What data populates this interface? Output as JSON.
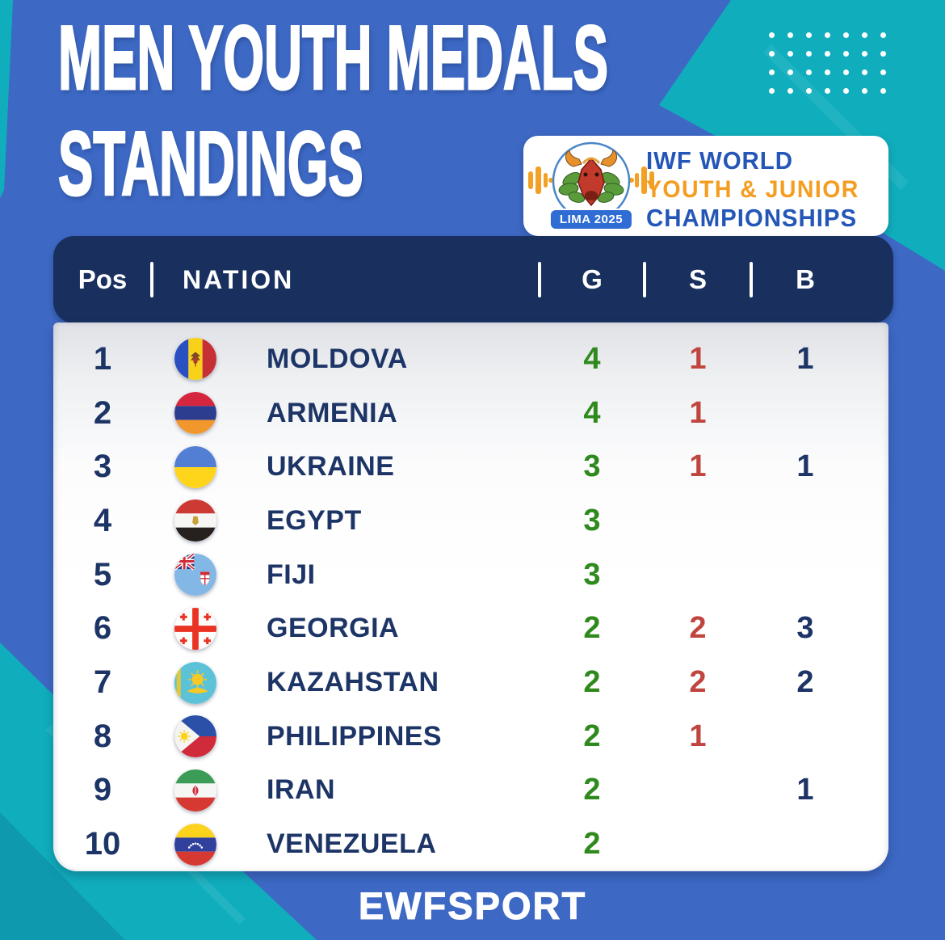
{
  "poster": {
    "title_line1": "MEN YOUTH MEDALS",
    "title_line2": "STANDINGS",
    "footer": "EWFSPORT"
  },
  "logo_card": {
    "event_line1": "IWF WORLD",
    "event_line2": "YOUTH & JUNIOR",
    "event_line3": "CHAMPIONSHIPS",
    "badge": "LIMA 2025",
    "emblem_icon": "dragon-barbell-emblem"
  },
  "medal_table": {
    "headers": {
      "pos": "Pos",
      "nation": "NATION",
      "gold": "G",
      "silver": "S",
      "bronze": "B"
    },
    "rows": [
      {
        "pos": "1",
        "flag": "moldova",
        "nation": "MOLDOVA",
        "gold": "4",
        "silver": "1",
        "bronze": "1"
      },
      {
        "pos": "2",
        "flag": "armenia",
        "nation": "ARMENIA",
        "gold": "4",
        "silver": "1",
        "bronze": ""
      },
      {
        "pos": "3",
        "flag": "ukraine",
        "nation": "UKRAINE",
        "gold": "3",
        "silver": "1",
        "bronze": "1"
      },
      {
        "pos": "4",
        "flag": "egypt",
        "nation": "EGYPT",
        "gold": "3",
        "silver": "",
        "bronze": ""
      },
      {
        "pos": "5",
        "flag": "fiji",
        "nation": "FIJI",
        "gold": "3",
        "silver": "",
        "bronze": ""
      },
      {
        "pos": "6",
        "flag": "georgia",
        "nation": "GEORGIA",
        "gold": "2",
        "silver": "2",
        "bronze": "3"
      },
      {
        "pos": "7",
        "flag": "kazakhstan",
        "nation": "KAZAHSTAN",
        "gold": "2",
        "silver": "2",
        "bronze": "2"
      },
      {
        "pos": "8",
        "flag": "philippines",
        "nation": "PHILIPPINES",
        "gold": "2",
        "silver": "1",
        "bronze": ""
      },
      {
        "pos": "9",
        "flag": "iran",
        "nation": "IRAN",
        "gold": "2",
        "silver": "",
        "bronze": "1"
      },
      {
        "pos": "10",
        "flag": "venezuela",
        "nation": "VENEZUELA",
        "gold": "2",
        "silver": "",
        "bronze": ""
      }
    ]
  },
  "chart_data": {
    "type": "table",
    "title": "MEN YOUTH MEDALS STANDINGS",
    "columns": [
      "Pos",
      "NATION",
      "G",
      "S",
      "B"
    ],
    "rows": [
      [
        1,
        "MOLDOVA",
        4,
        1,
        1
      ],
      [
        2,
        "ARMENIA",
        4,
        1,
        null
      ],
      [
        3,
        "UKRAINE",
        3,
        1,
        1
      ],
      [
        4,
        "EGYPT",
        3,
        null,
        null
      ],
      [
        5,
        "FIJI",
        3,
        null,
        null
      ],
      [
        6,
        "GEORGIA",
        2,
        2,
        3
      ],
      [
        7,
        "KAZAHSTAN",
        2,
        2,
        2
      ],
      [
        8,
        "PHILIPPINES",
        2,
        1,
        null
      ],
      [
        9,
        "IRAN",
        2,
        null,
        1
      ],
      [
        10,
        "VENEZUELA",
        2,
        null,
        null
      ]
    ]
  },
  "colors": {
    "background_blue": "#3d69c5",
    "accent_teal": "#10aebd",
    "header_navy": "#19305f",
    "text_navy": "#1d3566",
    "gold_green": "#2f8a1e",
    "silver_red": "#c1453f",
    "bronze_navy": "#1d3566",
    "logo_blue": "#2456b8",
    "logo_orange": "#f59d20"
  }
}
